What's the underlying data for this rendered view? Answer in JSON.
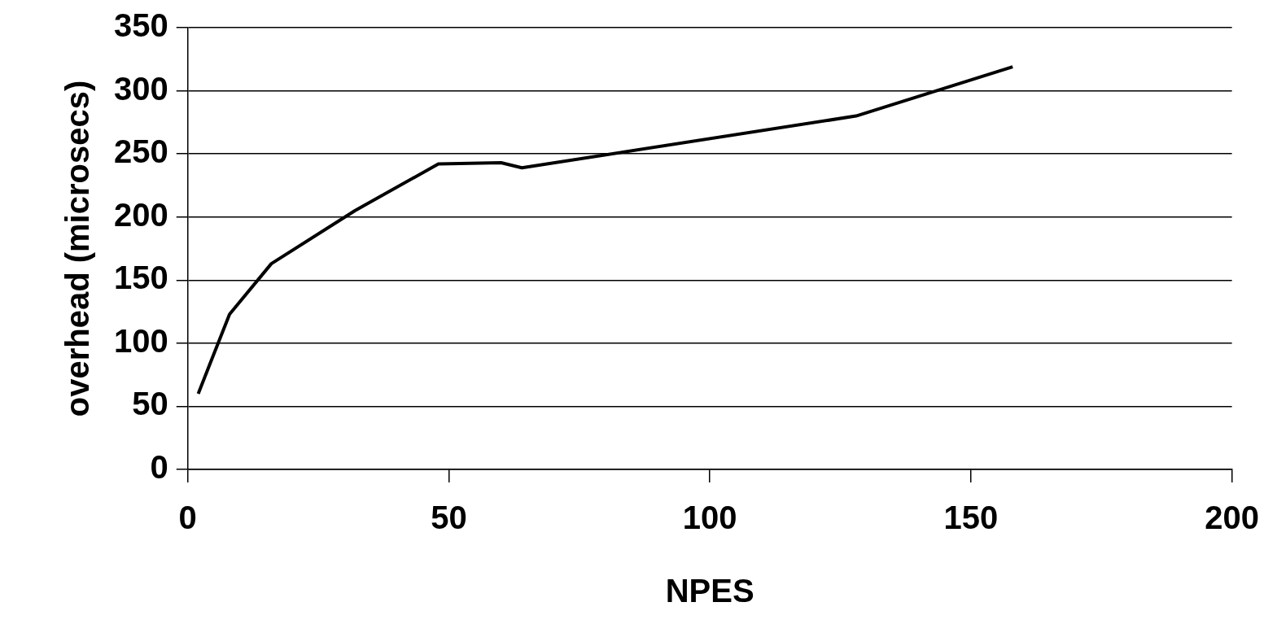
{
  "chart_data": {
    "type": "line",
    "xlabel": "NPES",
    "ylabel": "overhead (microsecs)",
    "x": [
      2,
      4,
      8,
      16,
      32,
      48,
      60,
      64,
      128,
      158
    ],
    "series": [
      {
        "color": "#000000",
        "values": [
          60,
          81,
          123,
          163,
          205,
          242,
          243,
          239,
          280,
          319
        ]
      }
    ],
    "xlim": [
      0,
      200
    ],
    "xticks": [
      0,
      50,
      100,
      150,
      200
    ],
    "ylim": [
      0,
      350
    ],
    "yticks": [
      0,
      50,
      100,
      150,
      200,
      250,
      300,
      350
    ],
    "grid": "y",
    "legend": false,
    "marker": "none",
    "line_style": "solid"
  }
}
